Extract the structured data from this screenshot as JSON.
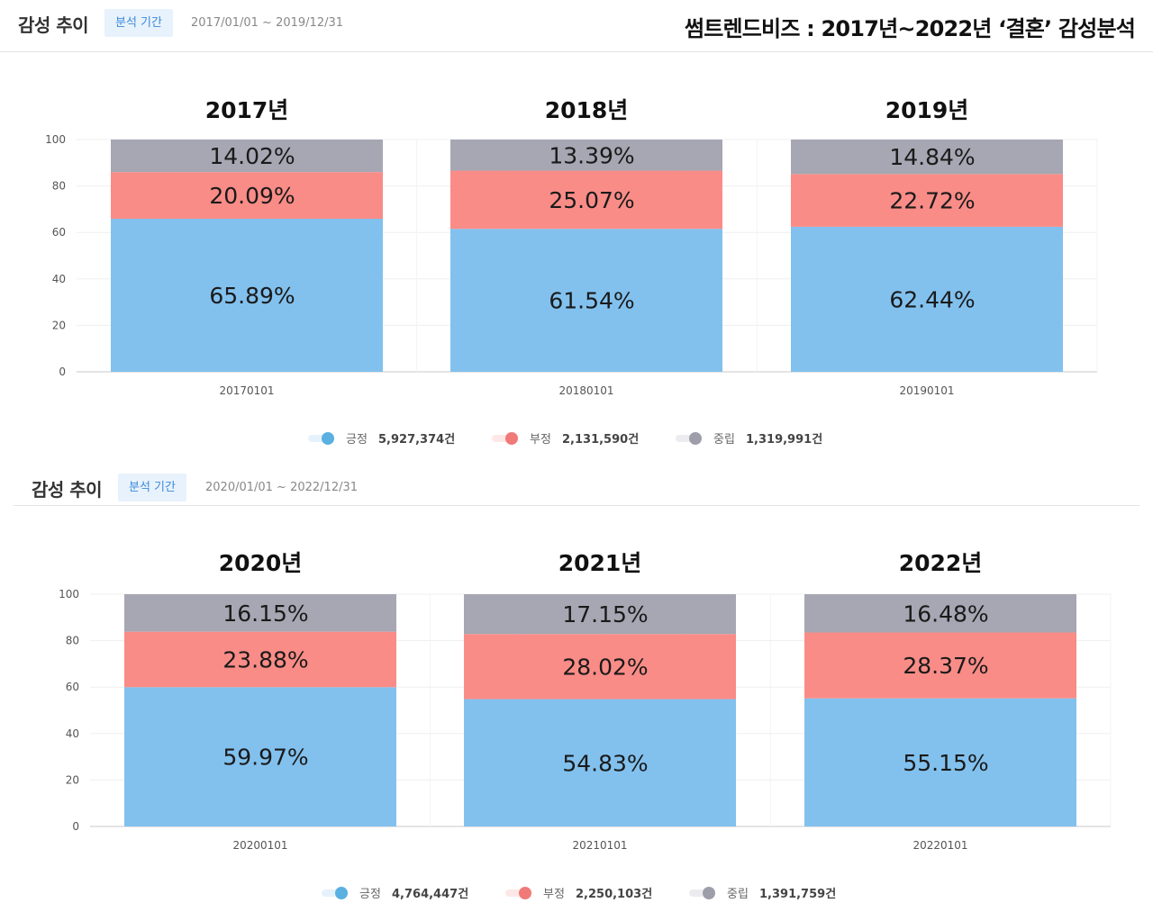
{
  "main_title": "썸트렌드비즈 : 2017년~2022년 ‘결혼’ 감성분석",
  "chart_data": [
    {
      "type": "bar",
      "stacked": true,
      "panel_title": "감성 추이",
      "period_badge": "분석 기간",
      "period_range": "2017/01/01 ~ 2019/12/31",
      "categories": [
        "20170101",
        "20180101",
        "20190101"
      ],
      "year_titles": [
        "2017년",
        "2018년",
        "2019년"
      ],
      "yticks": [
        "0",
        "20",
        "40",
        "60",
        "80",
        "100"
      ],
      "ylim": [
        0,
        100
      ],
      "grid": true,
      "series": [
        {
          "name": "긍정",
          "color": "#82c1ee",
          "values": [
            65.89,
            61.54,
            62.44
          ],
          "labels": [
            "65.89%",
            "61.54%",
            "62.44%"
          ]
        },
        {
          "name": "부정",
          "color": "#f98c87",
          "values": [
            20.09,
            25.07,
            22.72
          ],
          "labels": [
            "20.09%",
            "25.07%",
            "22.72%"
          ]
        },
        {
          "name": "중립",
          "color": "#a7a6b3",
          "values": [
            14.02,
            13.39,
            14.84
          ],
          "labels": [
            "14.02%",
            "13.39%",
            "14.84%"
          ]
        }
      ],
      "legend": [
        {
          "name": "긍정",
          "count": "5,927,374건",
          "dot": "#5ab0e0",
          "bar": "#e6f2fb"
        },
        {
          "name": "부정",
          "count": "2,131,590건",
          "dot": "#f07a78",
          "bar": "#fde8e7"
        },
        {
          "name": "중립",
          "count": "1,319,991건",
          "dot": "#9e9eaa",
          "bar": "#ececf0"
        }
      ],
      "legend_position": "bottom-center"
    },
    {
      "type": "bar",
      "stacked": true,
      "panel_title": "감성 추이",
      "period_badge": "분석 기간",
      "period_range": "2020/01/01 ~ 2022/12/31",
      "categories": [
        "20200101",
        "20210101",
        "20220101"
      ],
      "year_titles": [
        "2020년",
        "2021년",
        "2022년"
      ],
      "yticks": [
        "0",
        "20",
        "40",
        "60",
        "80",
        "100"
      ],
      "ylim": [
        0,
        100
      ],
      "grid": true,
      "series": [
        {
          "name": "긍정",
          "color": "#82c1ee",
          "values": [
            59.97,
            54.83,
            55.15
          ],
          "labels": [
            "59.97%",
            "54.83%",
            "55.15%"
          ]
        },
        {
          "name": "부정",
          "color": "#f98c87",
          "values": [
            23.88,
            28.02,
            28.37
          ],
          "labels": [
            "23.88%",
            "28.02%",
            "28.37%"
          ]
        },
        {
          "name": "중립",
          "color": "#a7a6b3",
          "values": [
            16.15,
            17.15,
            16.48
          ],
          "labels": [
            "16.15%",
            "17.15%",
            "16.48%"
          ]
        }
      ],
      "legend": [
        {
          "name": "긍정",
          "count": "4,764,447건",
          "dot": "#5ab0e0",
          "bar": "#e6f2fb"
        },
        {
          "name": "부정",
          "count": "2,250,103건",
          "dot": "#f07a78",
          "bar": "#fde8e7"
        },
        {
          "name": "중립",
          "count": "1,391,759건",
          "dot": "#9e9eaa",
          "bar": "#ececf0"
        }
      ],
      "legend_position": "bottom-center"
    }
  ]
}
